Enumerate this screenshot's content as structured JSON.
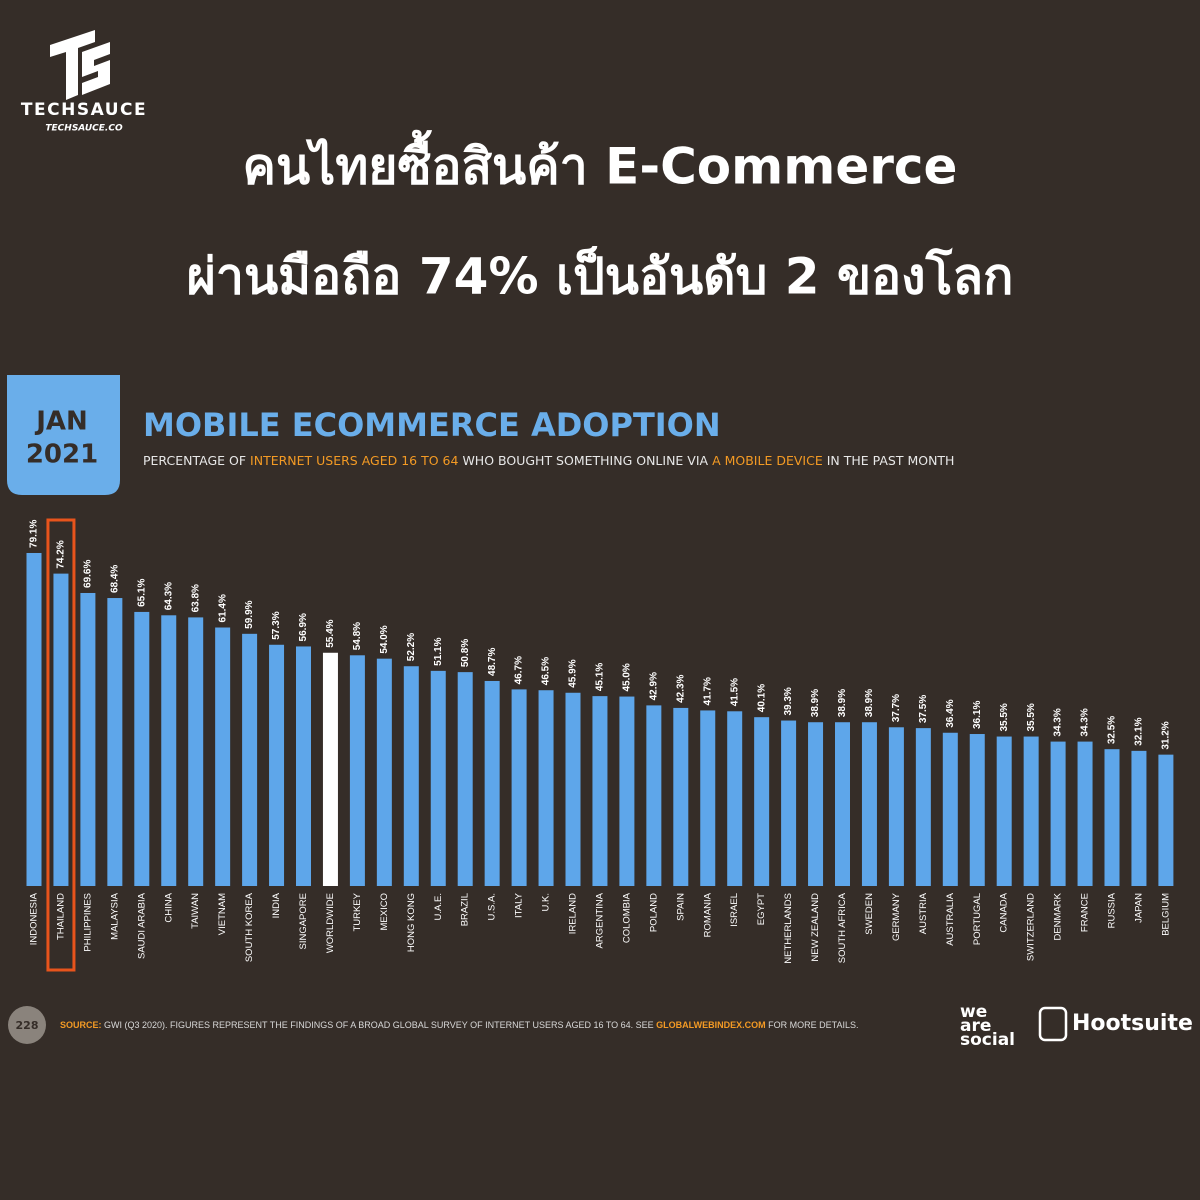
{
  "header": {
    "brand": "TECHSAUCE",
    "site": "TECHSAUCE.CO",
    "title_lines": [
      "คนไทยซื้อสินค้า E-Commerce",
      "ผ่านมือถือ 74% เป็นอันดับ 2 ของโลก"
    ]
  },
  "badge": {
    "month": "JAN",
    "year": "2021"
  },
  "chart_data": {
    "type": "bar",
    "title": "MOBILE ECOMMERCE ADOPTION",
    "subtitle": [
      "PERCENTAGE OF ",
      "INTERNET USERS AGED 16 TO 64",
      " WHO BOUGHT SOMETHING ONLINE VIA ",
      "A MOBILE DEVICE",
      " IN THE PAST MONTH"
    ],
    "categories": [
      "INDONESIA",
      "THAILAND",
      "PHILIPPINES",
      "MALAYSIA",
      "SAUDI ARABIA",
      "CHINA",
      "TAIWAN",
      "VIETNAM",
      "SOUTH KOREA",
      "INDIA",
      "SINGAPORE",
      "WORLDWIDE",
      "TURKEY",
      "MEXICO",
      "HONG KONG",
      "U.A.E.",
      "BRAZIL",
      "U.S.A.",
      "ITALY",
      "U.K.",
      "IRELAND",
      "ARGENTINA",
      "COLOMBIA",
      "POLAND",
      "SPAIN",
      "ROMANIA",
      "ISRAEL",
      "EGYPT",
      "NETHERLANDS",
      "NEW ZEALAND",
      "SOUTH AFRICA",
      "SWEDEN",
      "GERMANY",
      "AUSTRIA",
      "AUSTRALIA",
      "PORTUGAL",
      "CANADA",
      "SWITZERLAND",
      "DENMARK",
      "FRANCE",
      "RUSSIA",
      "JAPAN",
      "BELGIUM"
    ],
    "values": [
      79.1,
      74.2,
      69.6,
      68.4,
      65.1,
      64.3,
      63.8,
      61.4,
      59.9,
      57.3,
      56.9,
      55.4,
      54.8,
      54.0,
      52.2,
      51.1,
      50.8,
      48.7,
      46.7,
      46.5,
      45.9,
      45.1,
      45.0,
      42.9,
      42.3,
      41.7,
      41.5,
      40.1,
      39.3,
      38.9,
      38.9,
      38.9,
      37.7,
      37.5,
      36.4,
      36.1,
      35.5,
      35.5,
      34.3,
      34.3,
      32.5,
      32.1,
      31.2
    ],
    "value_labels": [
      "79.1%",
      "74.2%",
      "69.6%",
      "68.4%",
      "65.1%",
      "64.3%",
      "63.8%",
      "61.4%",
      "59.9%",
      "57.3%",
      "56.9%",
      "55.4%",
      "54.8%",
      "54.0%",
      "52.2%",
      "51.1%",
      "50.8%",
      "48.7%",
      "46.7%",
      "46.5%",
      "45.9%",
      "45.1%",
      "45.0%",
      "42.9%",
      "42.3%",
      "41.7%",
      "41.5%",
      "40.1%",
      "39.3%",
      "38.9%",
      "38.9%",
      "38.9%",
      "37.7%",
      "37.5%",
      "36.4%",
      "36.1%",
      "35.5%",
      "35.5%",
      "34.3%",
      "34.3%",
      "32.5%",
      "32.1%",
      "31.2%"
    ],
    "color": "#5ea6ea",
    "accent_color": "#f39a24",
    "special_bar": {
      "category": "WORLDWIDE",
      "color": "#ffffff"
    },
    "outline": {
      "category": "THAILAND",
      "color": "#e8541c"
    },
    "ylim": [
      0,
      100
    ]
  },
  "footer": {
    "page": "228",
    "source": [
      "SOURCE:",
      " GWI (Q3 2020). FIGURES REPRESENT THE FINDINGS OF A BROAD GLOBAL SURVEY OF INTERNET USERS AGED 16 TO 64. SEE ",
      "GLOBALWEBINDEX.COM",
      " FOR MORE DETAILS."
    ],
    "logos": [
      "we",
      "are",
      "social",
      "Hootsuite"
    ]
  }
}
